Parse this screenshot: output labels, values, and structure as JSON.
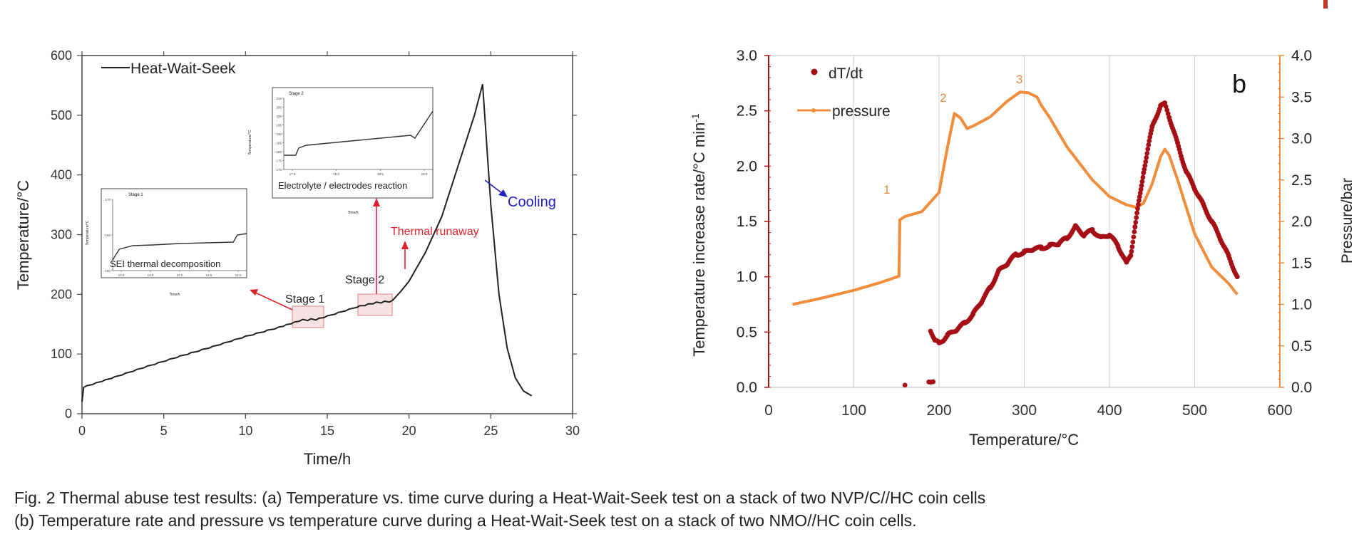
{
  "caption": {
    "line1": "Fig. 2 Thermal abuse test results: (a) Temperature vs. time curve during a Heat-Wait-Seek test on a stack of two NVP/C//HC coin cells",
    "line2": "(b) Temperature rate and pressure vs temperature curve during a Heat-Wait-Seek test on a stack of two NMO//HC coin cells."
  },
  "colors": {
    "panel_a_line": "#222222",
    "cooling": "#2020c0",
    "runaway": "#e0202a",
    "dtdt": "#a50f15",
    "pressure": "#f08c3a",
    "highlight_fill": "#f2d6d6",
    "highlight_stroke": "#e08080"
  },
  "chart_data": [
    {
      "type": "line",
      "panel": "a",
      "xlabel": "Time/h",
      "ylabel": "Temperature/°C",
      "xlim": [
        0,
        30
      ],
      "ylim": [
        0,
        600
      ],
      "xticks": [
        "0",
        "5",
        "10",
        "15",
        "20",
        "25",
        "30"
      ],
      "yticks": [
        "0",
        "100",
        "200",
        "300",
        "400",
        "500",
        "600"
      ],
      "legend": {
        "entries": [
          "Heat-Wait-Seek"
        ],
        "placement": "top-left"
      },
      "series": [
        {
          "name": "Heat-Wait-Seek",
          "x": [
            0,
            0.3,
            2,
            4,
            6,
            8,
            10,
            12,
            13.5,
            14.5,
            15,
            17,
            18,
            19,
            19.5,
            20,
            21,
            22,
            23,
            24,
            24.5,
            25,
            25.5,
            26,
            26.5,
            27,
            27.5
          ],
          "y": [
            20,
            47,
            62,
            80,
            97,
            113,
            130,
            145,
            158,
            160,
            164,
            181,
            187,
            190,
            205,
            222,
            270,
            330,
            415,
            500,
            552,
            350,
            200,
            110,
            60,
            38,
            30
          ]
        }
      ],
      "annotations": [
        {
          "text": "Cooling",
          "color": "cooling"
        },
        {
          "text": "Thermal runaway",
          "color": "runaway"
        },
        {
          "text": "Stage 1"
        },
        {
          "text": "Stage 2"
        }
      ],
      "insets": [
        {
          "title": "Stage 1",
          "label": "SEI thermal decomposition",
          "axis_label_y": "Temperature/°C",
          "axis_label_x": "Time/h",
          "yticks": [
            "170",
            "160",
            "150"
          ],
          "xticks": [
            "13.0",
            "13.5",
            "14.0",
            "14.5",
            "15.0"
          ],
          "trace_x": [
            0,
            0.05,
            0.15,
            0.3,
            0.5,
            0.7,
            0.9,
            0.93,
            1
          ],
          "trace_y": [
            0.15,
            0.3,
            0.35,
            0.36,
            0.38,
            0.39,
            0.4,
            0.5,
            0.52
          ]
        },
        {
          "title": "Stage 2",
          "label": "Electrolyte / electrodes reaction",
          "axis_label_y": "Temperature/°C",
          "axis_label_x": "Time/h",
          "yticks": [
            "210",
            "205",
            "200",
            "195",
            "190",
            "185",
            "180",
            "175",
            "170"
          ],
          "xticks": [
            "17.5",
            "18.0",
            "18.5",
            "19.0"
          ],
          "trace_x": [
            0,
            0.08,
            0.1,
            0.15,
            0.3,
            0.5,
            0.7,
            0.85,
            0.88,
            1
          ],
          "trace_y": [
            0.2,
            0.2,
            0.3,
            0.34,
            0.37,
            0.41,
            0.45,
            0.48,
            0.44,
            0.82
          ]
        }
      ]
    },
    {
      "type": "scatter",
      "panel": "b",
      "panel_label": "b",
      "xlabel": "Temperature/°C",
      "ylabel": "Temperature  increase rate/°C min",
      "ylabel_superscript": "-1",
      "y2label": "Pressure/bar",
      "xlim": [
        0,
        600
      ],
      "ylim": [
        0,
        3
      ],
      "y2lim": [
        0,
        4
      ],
      "xticks": [
        "0",
        "100",
        "200",
        "300",
        "400",
        "500",
        "600"
      ],
      "yticks": [
        "0.0",
        "0.5",
        "1.0",
        "1.5",
        "2.0",
        "2.5",
        "3.0"
      ],
      "y2ticks": [
        "0.0",
        "0.5",
        "1.0",
        "1.5",
        "2.0",
        "2.5",
        "3.0",
        "3.5",
        "4.0"
      ],
      "legend": {
        "entries": [
          "dT/dt",
          "pressure"
        ],
        "placement": "top-left"
      },
      "series": [
        {
          "name": "dT/dt",
          "style": "dots",
          "x": [
            160,
            188,
            193,
            190,
            195,
            200,
            205,
            210,
            220,
            230,
            240,
            250,
            260,
            270,
            280,
            290,
            300,
            310,
            320,
            330,
            340,
            350,
            360,
            370,
            380,
            390,
            400,
            410,
            420,
            425,
            430,
            440,
            450,
            460,
            465,
            470,
            480,
            490,
            500,
            510,
            520,
            530,
            540,
            550
          ],
          "y": [
            0.02,
            0.06,
            0.06,
            0.52,
            0.42,
            0.4,
            0.43,
            0.47,
            0.52,
            0.58,
            0.66,
            0.78,
            0.9,
            1.05,
            1.12,
            1.2,
            1.22,
            1.25,
            1.26,
            1.28,
            1.3,
            1.35,
            1.45,
            1.38,
            1.42,
            1.35,
            1.38,
            1.28,
            1.12,
            1.2,
            1.45,
            1.95,
            2.35,
            2.55,
            2.56,
            2.45,
            2.2,
            1.95,
            1.8,
            1.65,
            1.5,
            1.35,
            1.18,
            1.0
          ]
        },
        {
          "name": "pressure",
          "axis": "right",
          "style": "line",
          "x": [
            28,
            60,
            100,
            130,
            153,
            154,
            160,
            180,
            200,
            210,
            218,
            225,
            233,
            240,
            260,
            280,
            295,
            305,
            315,
            320,
            330,
            350,
            380,
            400,
            420,
            432,
            440,
            450,
            460,
            465,
            470,
            480,
            500,
            520,
            540,
            550
          ],
          "y": [
            1.0,
            1.07,
            1.17,
            1.26,
            1.34,
            2.02,
            2.06,
            2.12,
            2.35,
            2.9,
            3.3,
            3.25,
            3.12,
            3.15,
            3.26,
            3.45,
            3.56,
            3.55,
            3.5,
            3.4,
            3.25,
            2.9,
            2.5,
            2.3,
            2.2,
            2.17,
            2.22,
            2.45,
            2.78,
            2.87,
            2.8,
            2.5,
            1.85,
            1.45,
            1.25,
            1.12
          ]
        }
      ],
      "annotations": [
        "1",
        "2",
        "3"
      ]
    }
  ]
}
